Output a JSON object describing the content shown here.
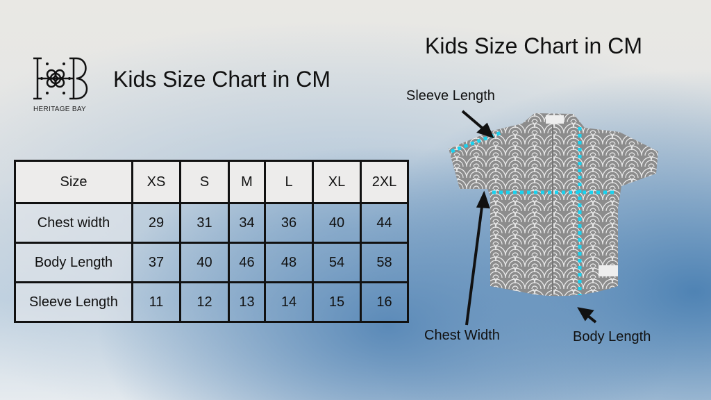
{
  "brand": {
    "name": "HERITAGE BAY"
  },
  "left_title": "Kids Size Chart in CM",
  "right_title": "Kids Size Chart in CM",
  "table": {
    "headers": [
      "Size",
      "XS",
      "S",
      "M",
      "L",
      "XL",
      "2XL"
    ],
    "rows": [
      {
        "label": "Chest width",
        "values": [
          "29",
          "31",
          "34",
          "36",
          "40",
          "44"
        ]
      },
      {
        "label": "Body Length",
        "values": [
          "37",
          "40",
          "46",
          "48",
          "54",
          "58"
        ]
      },
      {
        "label": "Sleeve Length",
        "values": [
          "11",
          "12",
          "13",
          "14",
          "15",
          "16"
        ]
      }
    ]
  },
  "diagram": {
    "sleeve_label": "Sleeve Length",
    "chest_label": "Chest Width",
    "body_label": "Body Length",
    "measure_color": "#19d3f0",
    "shirt_color": "#8c8c8c"
  }
}
